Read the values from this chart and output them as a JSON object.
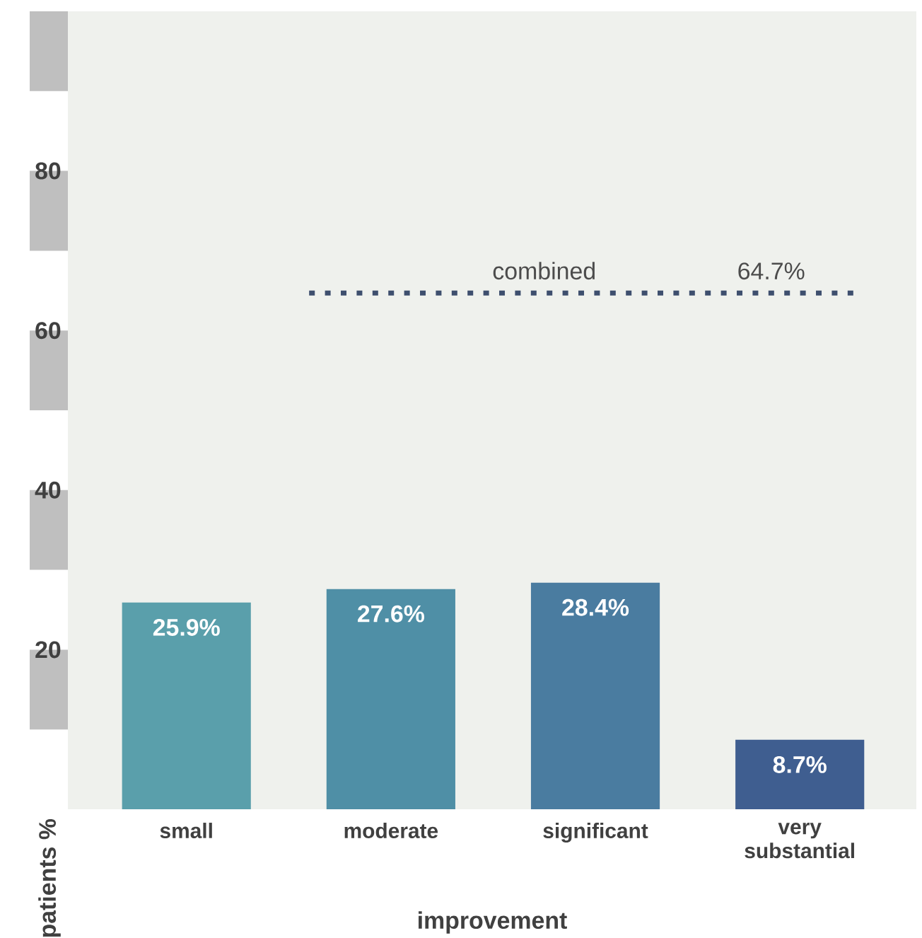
{
  "chart_data": {
    "type": "bar",
    "xlabel": "improvement",
    "ylabel": "patients %",
    "categories": [
      "small",
      "moderate",
      "significant",
      "very substantial"
    ],
    "values": [
      25.9,
      27.6,
      28.4,
      8.7
    ],
    "colors": [
      "#5a9fab",
      "#4f8fa6",
      "#4a7ca0",
      "#3f5e90"
    ],
    "value_labels": [
      "25.9%",
      "27.6%",
      "28.4%",
      "8.7%"
    ],
    "ylim": [
      0,
      100
    ],
    "yticks": [
      20,
      40,
      60,
      80
    ],
    "ref_lines": [
      {
        "axis": "y",
        "value": 64.7,
        "label": "combined",
        "color": "#3e4f6e",
        "line_style": "dotted"
      }
    ],
    "annotations": [
      "64.7%"
    ]
  }
}
